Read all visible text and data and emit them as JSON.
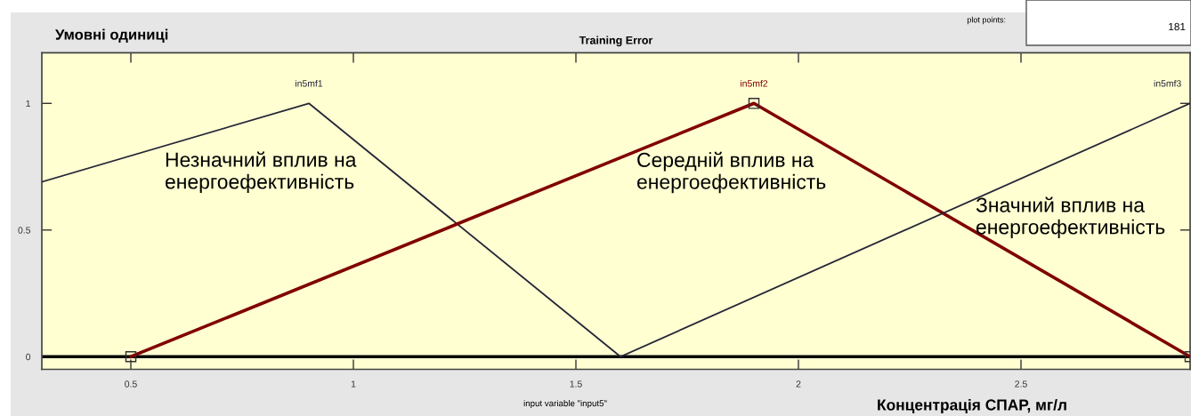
{
  "chart_data": {
    "type": "line",
    "title": "Training Error",
    "xlabel": "input variable \"input5\"",
    "ylabel": "Умовні одиниці",
    "xlim": [
      0.3,
      2.88
    ],
    "ylim": [
      -0.05,
      1.2
    ],
    "xticks": [
      0.5,
      1,
      1.5,
      2,
      2.5
    ],
    "yticks": [
      0,
      0.5,
      1
    ],
    "grid": false,
    "series": [
      {
        "name": "in5mf1",
        "color": "#262638",
        "x": [
          0.3,
          0.9,
          1.6
        ],
        "values": [
          0.69,
          1,
          0
        ]
      },
      {
        "name": "in5mf2",
        "color": "#800000",
        "x": [
          0.5,
          1.9,
          2.88
        ],
        "values": [
          0,
          1,
          0
        ],
        "marker": "square"
      },
      {
        "name": "in5mf3",
        "color": "#262638",
        "x": [
          1.6,
          2.88
        ],
        "values": [
          0,
          1
        ]
      }
    ],
    "ref_lines": [
      {
        "axis": "y",
        "value": 0,
        "color": "#000000"
      }
    ],
    "annotations": [
      "Незначний вплив на\nенергоефективність",
      "Середній вплив на\nенергоефективність",
      "Значний вплив на\nенергоефективність",
      "Концентрація СПАР, мг/л",
      "plot points:",
      "181"
    ]
  }
}
